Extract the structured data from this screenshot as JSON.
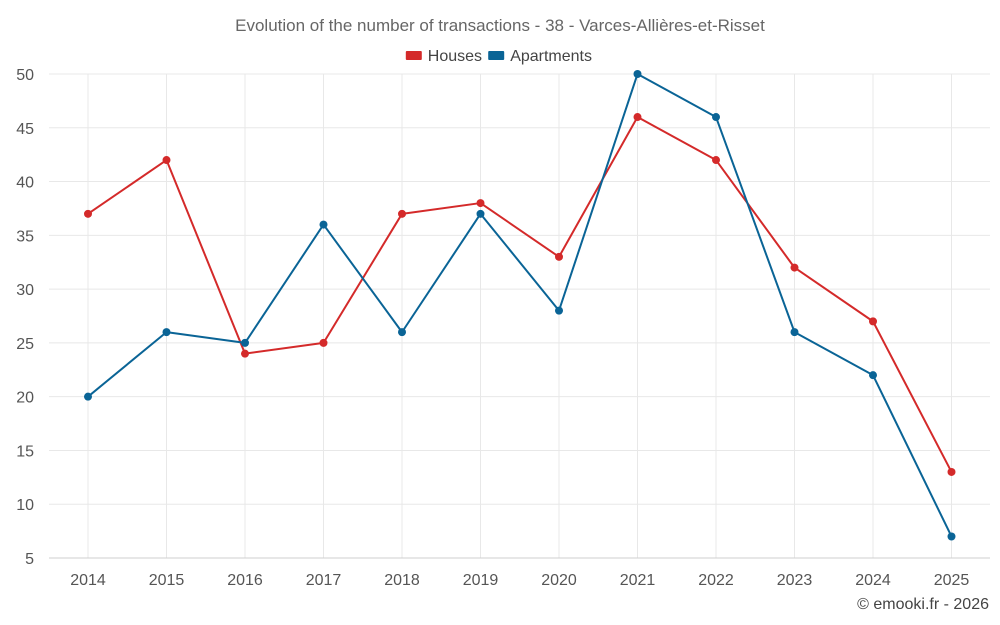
{
  "chart_data": {
    "type": "line",
    "title": "Evolution of the number of transactions - 38 - Varces-Allières-et-Risset",
    "categories": [
      "2014",
      "2015",
      "2016",
      "2017",
      "2018",
      "2019",
      "2020",
      "2021",
      "2022",
      "2023",
      "2024",
      "2025"
    ],
    "series": [
      {
        "name": "Houses",
        "color": "#d42a2a",
        "values": [
          37,
          42,
          24,
          25,
          37,
          38,
          33,
          46,
          42,
          32,
          27,
          13
        ]
      },
      {
        "name": "Apartments",
        "color": "#0a6496",
        "values": [
          20,
          26,
          25,
          36,
          26,
          37,
          28,
          50,
          46,
          26,
          22,
          7
        ]
      }
    ],
    "ylim": [
      5,
      50
    ],
    "yticks": [
      5,
      10,
      15,
      20,
      25,
      30,
      35,
      40,
      45,
      50
    ],
    "xlabel": "",
    "ylabel": "",
    "grid": true,
    "legend": "top-center"
  },
  "credit": "© emooki.fr - 2026"
}
